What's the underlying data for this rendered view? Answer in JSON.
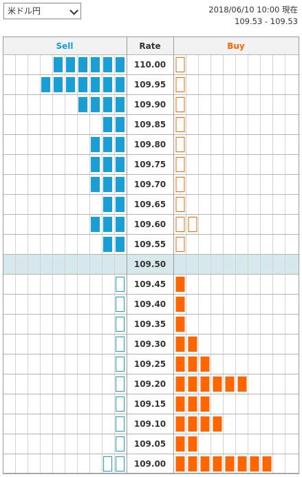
{
  "header": {
    "currency_pair": "米ドル円",
    "timestamp": "2018/06/10 10:00 現在",
    "quote": "109.53 - 109.53"
  },
  "columns": {
    "sell": "Sell",
    "rate": "Rate",
    "buy": "Buy"
  },
  "colors": {
    "sell": "#1a9fd4",
    "buy": "#ff6600",
    "current_row": "#d7e8ec",
    "grid": "#d4d4d4",
    "border": "#9a9a9a"
  },
  "rows": [
    {
      "rate": "110.00",
      "sell_filled": 6,
      "sell_outline": 0,
      "buy_filled": 0,
      "buy_outline": 1
    },
    {
      "rate": "109.95",
      "sell_filled": 7,
      "sell_outline": 0,
      "buy_filled": 0,
      "buy_outline": 1
    },
    {
      "rate": "109.90",
      "sell_filled": 4,
      "sell_outline": 0,
      "buy_filled": 0,
      "buy_outline": 1
    },
    {
      "rate": "109.85",
      "sell_filled": 2,
      "sell_outline": 0,
      "buy_filled": 0,
      "buy_outline": 1
    },
    {
      "rate": "109.80",
      "sell_filled": 3,
      "sell_outline": 0,
      "buy_filled": 0,
      "buy_outline": 1
    },
    {
      "rate": "109.75",
      "sell_filled": 3,
      "sell_outline": 0,
      "buy_filled": 0,
      "buy_outline": 1
    },
    {
      "rate": "109.70",
      "sell_filled": 3,
      "sell_outline": 0,
      "buy_filled": 0,
      "buy_outline": 1
    },
    {
      "rate": "109.65",
      "sell_filled": 2,
      "sell_outline": 0,
      "buy_filled": 0,
      "buy_outline": 1
    },
    {
      "rate": "109.60",
      "sell_filled": 3,
      "sell_outline": 0,
      "buy_filled": 0,
      "buy_outline": 2
    },
    {
      "rate": "109.55",
      "sell_filled": 2,
      "sell_outline": 0,
      "buy_filled": 0,
      "buy_outline": 1
    },
    {
      "rate": "109.50",
      "sell_filled": 0,
      "sell_outline": 0,
      "buy_filled": 0,
      "buy_outline": 0,
      "current": true
    },
    {
      "rate": "109.45",
      "sell_filled": 0,
      "sell_outline": 1,
      "buy_filled": 1,
      "buy_outline": 0
    },
    {
      "rate": "109.40",
      "sell_filled": 0,
      "sell_outline": 1,
      "buy_filled": 1,
      "buy_outline": 0
    },
    {
      "rate": "109.35",
      "sell_filled": 0,
      "sell_outline": 1,
      "buy_filled": 1,
      "buy_outline": 0
    },
    {
      "rate": "109.30",
      "sell_filled": 0,
      "sell_outline": 1,
      "buy_filled": 2,
      "buy_outline": 0
    },
    {
      "rate": "109.25",
      "sell_filled": 0,
      "sell_outline": 1,
      "buy_filled": 3,
      "buy_outline": 0
    },
    {
      "rate": "109.20",
      "sell_filled": 0,
      "sell_outline": 1,
      "buy_filled": 6,
      "buy_outline": 0
    },
    {
      "rate": "109.15",
      "sell_filled": 0,
      "sell_outline": 1,
      "buy_filled": 3,
      "buy_outline": 0
    },
    {
      "rate": "109.10",
      "sell_filled": 0,
      "sell_outline": 1,
      "buy_filled": 4,
      "buy_outline": 0
    },
    {
      "rate": "109.05",
      "sell_filled": 0,
      "sell_outline": 1,
      "buy_filled": 2,
      "buy_outline": 0
    },
    {
      "rate": "109.00",
      "sell_filled": 0,
      "sell_outline": 2,
      "buy_filled": 8,
      "buy_outline": 0
    }
  ]
}
